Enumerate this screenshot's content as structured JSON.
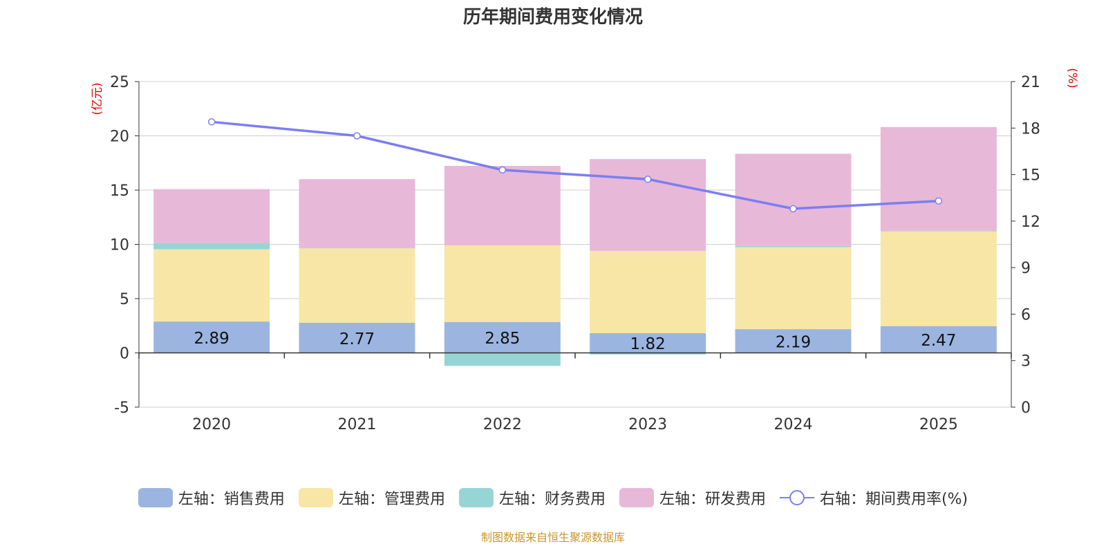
{
  "title": "历年期间费用变化情况",
  "source": "制图数据来自恒生聚源数据库",
  "colors": {
    "sales": "#9bb5e0",
    "admin": "#f8e6a6",
    "finance": "#97d5d5",
    "rnd": "#e8b8d8",
    "rate": "#7b7ef0",
    "axis_unit": "#e00000"
  },
  "chart_data": {
    "type": "bar",
    "title": "历年期间费用变化情况",
    "categories": [
      "2020",
      "2021",
      "2022",
      "2023",
      "2024",
      "2025"
    ],
    "y_left": {
      "unit_label": "(亿元)",
      "ylim": [
        -5,
        25
      ],
      "ticks": [
        -5,
        0,
        5,
        10,
        15,
        20,
        25
      ]
    },
    "y_right": {
      "unit_label": "(%)",
      "ylim": [
        0,
        21
      ],
      "ticks": [
        0,
        3,
        6,
        9,
        12,
        15,
        18,
        21
      ]
    },
    "grid": true,
    "stacked": true,
    "series": [
      {
        "name": "左轴：销售费用",
        "axis": "left",
        "type": "bar",
        "color_key": "sales",
        "values": [
          2.89,
          2.77,
          2.85,
          1.82,
          2.19,
          2.47
        ],
        "show_labels": true
      },
      {
        "name": "左轴：管理费用",
        "axis": "left",
        "type": "bar",
        "color_key": "admin",
        "values": [
          6.65,
          6.86,
          7.05,
          7.58,
          7.55,
          8.73
        ]
      },
      {
        "name": "左轴：财务费用",
        "axis": "left",
        "type": "bar",
        "color_key": "finance",
        "values": [
          0.58,
          0.03,
          -1.2,
          -0.15,
          0.12,
          0.04
        ]
      },
      {
        "name": "左轴：研发费用",
        "axis": "left",
        "type": "bar",
        "color_key": "rnd",
        "values": [
          4.97,
          6.35,
          7.33,
          8.46,
          8.49,
          9.57
        ]
      },
      {
        "name": "右轴：期间费用率(%)",
        "axis": "right",
        "type": "line",
        "color_key": "rate",
        "values": [
          18.4,
          17.5,
          15.3,
          14.7,
          12.8,
          13.3
        ]
      }
    ],
    "legend_position": "bottom"
  }
}
